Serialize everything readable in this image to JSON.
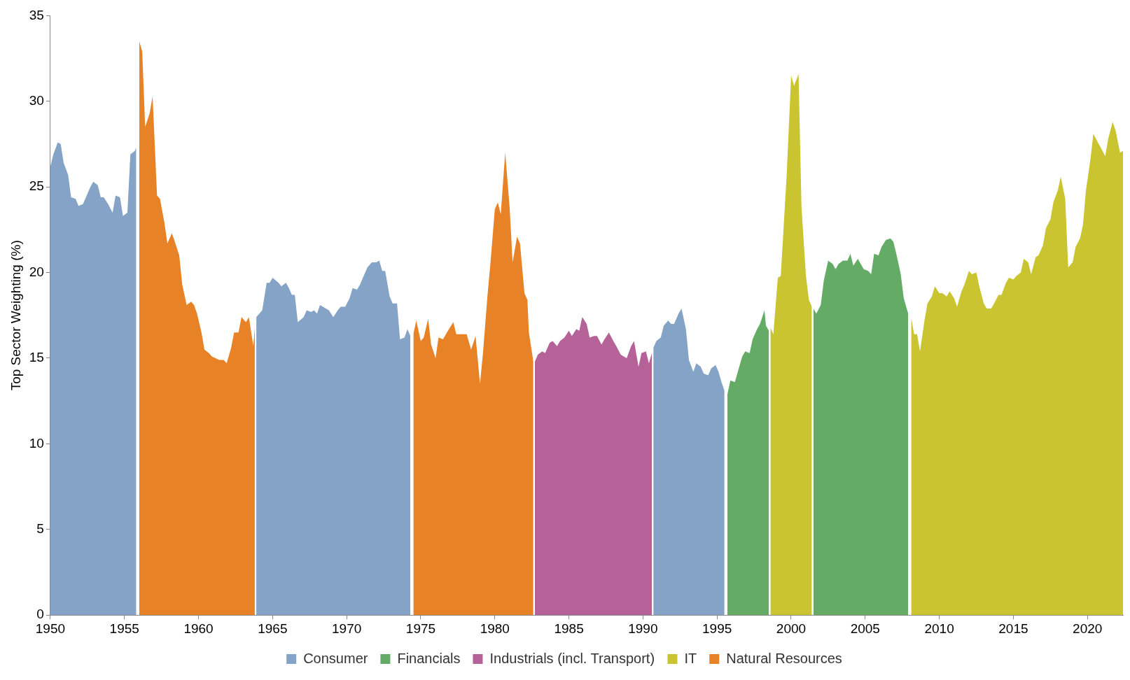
{
  "chart_data": {
    "type": "area",
    "ylabel": "Top Sector Weighting (%)",
    "xlim": [
      1950,
      2022.4
    ],
    "xticks": [
      1950,
      1955,
      1960,
      1965,
      1970,
      1975,
      1980,
      1985,
      1990,
      1995,
      2000,
      2005,
      2010,
      2015,
      2020
    ],
    "ylim": [
      0,
      35
    ],
    "yticks": [
      0,
      5,
      10,
      15,
      20,
      25,
      30,
      35
    ],
    "legend": "bottom",
    "series": [
      {
        "name": "Consumer",
        "color": "#84a3c6",
        "x": [
          1950.0,
          1950.2,
          1950.5,
          1950.7,
          1950.9,
          1951.2,
          1951.4,
          1951.7,
          1951.9,
          1952.2,
          1952.4,
          1952.7,
          1952.9,
          1953.2,
          1953.4,
          1953.6,
          1953.9,
          1954.2,
          1954.4,
          1954.7,
          1954.9,
          1955.2,
          1955.4,
          1955.7,
          1955.8,
          1960,
          1963.9,
          1964.3,
          1964.6,
          1964.8,
          1965.0,
          1965.4,
          1965.6,
          1965.9,
          1966.1,
          1966.3,
          1966.5,
          1966.7,
          1967.1,
          1967.3,
          1967.6,
          1967.8,
          1968.0,
          1968.2,
          1968.6,
          1968.8,
          1969.1,
          1969.4,
          1969.6,
          1969.9,
          1970.2,
          1970.4,
          1970.7,
          1970.9,
          1971.2,
          1971.4,
          1971.7,
          1972.0,
          1972.2,
          1972.4,
          1972.6,
          1972.9,
          1973.1,
          1973.4,
          1973.6,
          1973.9,
          1974.1,
          1974.3,
          1980,
          1990.7,
          1990.9,
          1991.2,
          1991.4,
          1991.7,
          1991.9,
          1992.1,
          1992.4,
          1992.6,
          1992.9,
          1993.1,
          1993.4,
          1993.6,
          1993.9,
          1994.1,
          1994.4,
          1994.6,
          1994.9,
          1995.1,
          1995.3,
          1995.5
        ],
        "values": [
          26.2,
          26.9,
          27.6,
          27.5,
          26.4,
          25.7,
          24.4,
          24.3,
          23.9,
          24.0,
          24.4,
          25.0,
          25.3,
          25.1,
          24.4,
          24.4,
          24.0,
          23.5,
          24.5,
          24.4,
          23.3,
          23.5,
          26.9,
          27.1,
          27.3,
          null,
          17.4,
          17.8,
          19.4,
          19.4,
          19.7,
          19.4,
          19.2,
          19.4,
          19.1,
          18.7,
          18.7,
          17.1,
          17.4,
          17.8,
          17.7,
          17.8,
          17.6,
          18.1,
          17.9,
          17.8,
          17.4,
          17.8,
          18.0,
          18.0,
          18.5,
          19.1,
          19.0,
          19.3,
          19.9,
          20.3,
          20.6,
          20.6,
          20.7,
          20.1,
          20.1,
          18.6,
          18.2,
          18.2,
          16.1,
          16.2,
          16.7,
          16.3,
          null,
          15.6,
          16.0,
          16.2,
          16.9,
          17.2,
          17.0,
          17.0,
          17.6,
          17.9,
          16.7,
          14.9,
          14.2,
          14.7,
          14.5,
          14.1,
          14.0,
          14.4,
          14.6,
          14.2,
          13.6,
          13.1
        ]
      },
      {
        "name": "Financials",
        "color": "#64ab66",
        "x": [
          1995.7,
          1995.9,
          1996.2,
          1996.4,
          1996.7,
          1996.9,
          1997.2,
          1997.4,
          1997.7,
          1997.9,
          1998.2,
          1998.3,
          1998.5,
          2000,
          2001.5,
          2001.7,
          2002.0,
          2002.2,
          2002.5,
          2002.8,
          2003.0,
          2003.2,
          2003.5,
          2003.8,
          2004.0,
          2004.2,
          2004.5,
          2004.7,
          2004.9,
          2005.2,
          2005.4,
          2005.6,
          2005.9,
          2006.1,
          2006.4,
          2006.7,
          2006.9,
          2007.1,
          2007.4,
          2007.6,
          2007.9
        ],
        "values": [
          12.9,
          13.7,
          13.6,
          14.2,
          15.1,
          15.4,
          15.3,
          16.1,
          16.7,
          17.0,
          17.8,
          16.9,
          16.6,
          null,
          17.9,
          17.6,
          18.1,
          19.5,
          20.7,
          20.5,
          20.2,
          20.5,
          20.7,
          20.7,
          21.1,
          20.4,
          20.8,
          20.5,
          20.2,
          20.1,
          19.9,
          21.1,
          21.0,
          21.5,
          21.9,
          22.0,
          21.8,
          21.1,
          19.9,
          18.5,
          17.6
        ]
      },
      {
        "name": "Industrials (incl. Transport)",
        "color": "#b46298",
        "x": [
          1982.7,
          1982.9,
          1983.2,
          1983.4,
          1983.7,
          1983.9,
          1984.2,
          1984.4,
          1984.7,
          1985.0,
          1985.2,
          1985.5,
          1985.7,
          1985.9,
          1986.2,
          1986.4,
          1986.7,
          1986.9,
          1987.2,
          1987.4,
          1987.7,
          1988.0,
          1988.2,
          1988.5,
          1988.7,
          1988.9,
          1989.2,
          1989.4,
          1989.7,
          1989.9,
          1990.2,
          1990.4,
          1990.6
        ],
        "values": [
          14.8,
          15.2,
          15.4,
          15.3,
          15.9,
          16.0,
          15.7,
          16.0,
          16.2,
          16.6,
          16.3,
          16.7,
          16.6,
          17.4,
          17.0,
          16.2,
          16.3,
          16.3,
          15.8,
          16.1,
          16.5,
          16.0,
          15.7,
          15.2,
          15.1,
          15.0,
          15.7,
          16.0,
          14.5,
          15.3,
          15.4,
          14.7,
          15.3
        ]
      },
      {
        "name": "IT",
        "color": "#c9c430",
        "x": [
          1998.6,
          1998.8,
          1999.1,
          1999.3,
          1999.7,
          2000.0,
          2000.2,
          2000.5,
          2000.7,
          2001.0,
          2001.2,
          2001.4,
          2005,
          2008.1,
          2008.3,
          2008.5,
          2008.7,
          2009.0,
          2009.2,
          2009.5,
          2009.7,
          2010.0,
          2010.2,
          2010.5,
          2010.7,
          2011.0,
          2011.2,
          2011.5,
          2011.7,
          2012.0,
          2012.2,
          2012.5,
          2012.7,
          2013.0,
          2013.2,
          2013.5,
          2013.7,
          2014.0,
          2014.2,
          2014.5,
          2014.7,
          2015.0,
          2015.2,
          2015.5,
          2015.7,
          2016.0,
          2016.2,
          2016.5,
          2016.7,
          2017.0,
          2017.2,
          2017.5,
          2017.7,
          2018.0,
          2018.2,
          2018.5,
          2018.7,
          2019.0,
          2019.2,
          2019.5,
          2019.7,
          2019.9,
          2020.2,
          2020.4,
          2020.7,
          2020.9,
          2021.2,
          2021.4,
          2021.7,
          2021.9,
          2022.2,
          2022.4
        ],
        "values": [
          16.8,
          16.4,
          19.7,
          19.8,
          25.7,
          31.5,
          30.9,
          31.6,
          23.8,
          19.8,
          18.4,
          18.0,
          null,
          17.4,
          16.4,
          16.4,
          15.4,
          17.2,
          18.2,
          18.6,
          19.2,
          18.8,
          18.8,
          18.6,
          18.9,
          18.5,
          18.0,
          18.9,
          19.3,
          20.1,
          19.9,
          20.0,
          19.2,
          18.2,
          17.9,
          17.9,
          18.2,
          18.7,
          18.7,
          19.4,
          19.7,
          19.6,
          19.8,
          20.0,
          20.8,
          20.6,
          19.9,
          20.9,
          21.0,
          21.6,
          22.6,
          23.1,
          24.1,
          24.8,
          25.6,
          24.3,
          20.3,
          20.6,
          21.5,
          22.0,
          22.8,
          24.8,
          26.6,
          28.1,
          27.6,
          27.3,
          26.8,
          27.8,
          28.8,
          28.3,
          27.0,
          27.1
        ]
      },
      {
        "name": "Natural Resources",
        "color": "#e88226",
        "x": [
          1956.0,
          1956.2,
          1956.4,
          1956.7,
          1956.9,
          1957.2,
          1957.4,
          1957.7,
          1957.9,
          1958.2,
          1958.4,
          1958.7,
          1958.9,
          1959.2,
          1959.5,
          1959.7,
          1959.9,
          1960.2,
          1960.4,
          1960.7,
          1960.9,
          1961.4,
          1961.7,
          1961.9,
          1962.2,
          1962.4,
          1962.7,
          1962.9,
          1963.2,
          1963.4,
          1963.7,
          1963.8,
          1970,
          1974.5,
          1974.7,
          1975.0,
          1975.2,
          1975.5,
          1975.7,
          1976.0,
          1976.2,
          1976.5,
          1976.9,
          1977.2,
          1977.4,
          1977.7,
          1978.1,
          1978.4,
          1978.7,
          1979.0,
          1979.2,
          1979.5,
          1979.7,
          1980.0,
          1980.2,
          1980.4,
          1980.7,
          1981.0,
          1981.2,
          1981.5,
          1981.7,
          1982.0,
          1982.2,
          1982.3,
          1982.6
        ],
        "values": [
          33.5,
          32.9,
          28.5,
          29.3,
          30.3,
          24.5,
          24.3,
          22.9,
          21.7,
          22.3,
          21.8,
          21.0,
          19.3,
          18.1,
          18.3,
          18.1,
          17.6,
          16.5,
          15.5,
          15.3,
          15.1,
          14.9,
          14.9,
          14.7,
          15.6,
          16.5,
          16.5,
          17.4,
          17.1,
          17.4,
          15.7,
          16.8,
          null,
          16.4,
          17.2,
          16.0,
          16.2,
          17.3,
          15.8,
          15.0,
          16.2,
          16.1,
          16.7,
          17.1,
          16.4,
          16.4,
          16.4,
          15.5,
          16.3,
          13.5,
          15.3,
          18.6,
          20.5,
          23.7,
          24.1,
          23.4,
          27.0,
          23.8,
          20.6,
          22.1,
          21.7,
          18.8,
          18.4,
          16.5,
          14.8
        ]
      }
    ]
  }
}
